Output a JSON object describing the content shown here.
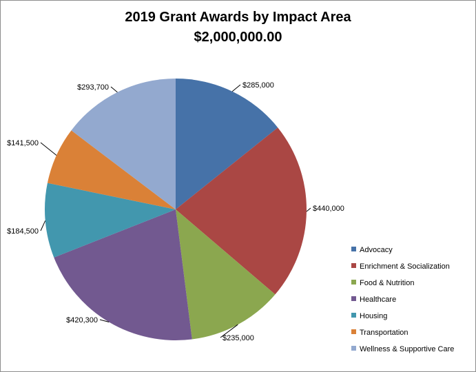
{
  "chart_data": {
    "type": "pie",
    "title": "2019 Grant Awards by Impact Area",
    "subtitle": "$2,000,000.00",
    "legend_position": "bottom-right",
    "slices": [
      {
        "name": "Advocacy",
        "value": 285000,
        "label": "$285,000",
        "color": "#4672A8"
      },
      {
        "name": "Enrichment & Socialization",
        "value": 440000,
        "label": "$440,000",
        "color": "#AA4744"
      },
      {
        "name": "Food & Nutrition",
        "value": 235000,
        "label": "$235,000",
        "color": "#8BA74F"
      },
      {
        "name": "Healthcare",
        "value": 420300,
        "label": "$420,300",
        "color": "#725990"
      },
      {
        "name": "Housing",
        "value": 184500,
        "label": "$184,500",
        "color": "#4297AE"
      },
      {
        "name": "Transportation",
        "value": 141500,
        "label": "$141,500",
        "color": "#DA8137"
      },
      {
        "name": "Wellness & Supportive Care",
        "value": 293700,
        "label": "$293,700",
        "color": "#93A9CF"
      }
    ]
  }
}
